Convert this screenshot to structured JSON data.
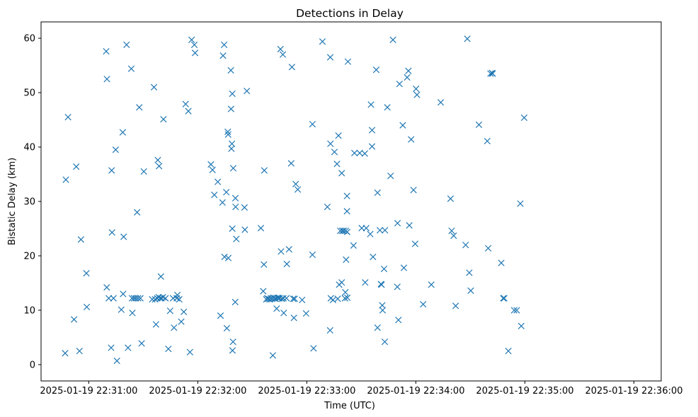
{
  "chart_data": {
    "type": "scatter",
    "title": "Detections in Delay",
    "xlabel": "Time (UTC)",
    "ylabel": "Bistatic Delay (km)",
    "x_axis_kind": "datetime",
    "x_start": "2025-01-19 22:30:47",
    "xlim": [
      -13.25,
      328
    ],
    "ylim": [
      -3.0,
      63.0
    ],
    "grid": false,
    "legend": null,
    "marker": "x",
    "color": "#1f77b4",
    "x_ticks": [
      {
        "t": 13,
        "label": "2025-01-19 22:31:00"
      },
      {
        "t": 73,
        "label": "2025-01-19 22:32:00"
      },
      {
        "t": 133,
        "label": "2025-01-19 22:33:00"
      },
      {
        "t": 193,
        "label": "2025-01-19 22:34:00"
      },
      {
        "t": 253,
        "label": "2025-01-19 22:35:00"
      },
      {
        "t": 313,
        "label": "2025-01-19 22:36:00"
      }
    ],
    "y_ticks": [
      {
        "v": 0,
        "label": "0"
      },
      {
        "v": 10,
        "label": "10"
      },
      {
        "v": 20,
        "label": "20"
      },
      {
        "v": 30,
        "label": "30"
      },
      {
        "v": 40,
        "label": "40"
      },
      {
        "v": 50,
        "label": "50"
      },
      {
        "v": 60,
        "label": "60"
      }
    ],
    "points": [
      [
        0,
        2.1
      ],
      [
        0.4,
        34.0
      ],
      [
        1.6,
        45.5
      ],
      [
        4.9,
        8.3
      ],
      [
        6.1,
        36.4
      ],
      [
        7.9,
        2.5
      ],
      [
        8.7,
        23.0
      ],
      [
        11.7,
        16.8
      ],
      [
        11.9,
        10.6
      ],
      [
        22.6,
        57.6
      ],
      [
        22.9,
        14.2
      ],
      [
        23.0,
        52.5
      ],
      [
        24.0,
        12.2
      ],
      [
        25.3,
        3.1
      ],
      [
        25.6,
        35.7
      ],
      [
        25.8,
        24.3
      ],
      [
        26.6,
        12.2
      ],
      [
        27.8,
        39.5
      ],
      [
        28.5,
        0.7
      ],
      [
        30.9,
        10.1
      ],
      [
        31.7,
        42.7
      ],
      [
        31.9,
        13.0
      ],
      [
        32.2,
        23.5
      ],
      [
        33.8,
        58.8
      ],
      [
        34.6,
        3.1
      ],
      [
        36.4,
        54.4
      ],
      [
        36.8,
        12.2
      ],
      [
        37.0,
        9.5
      ],
      [
        37.9,
        12.2
      ],
      [
        38.9,
        12.2
      ],
      [
        39.6,
        28.0
      ],
      [
        40.1,
        12.2
      ],
      [
        40.8,
        47.3
      ],
      [
        41.4,
        12.2
      ],
      [
        42.1,
        3.9
      ],
      [
        43.3,
        35.5
      ],
      [
        47.9,
        12.0
      ],
      [
        48.9,
        51.0
      ],
      [
        49.5,
        12.0
      ],
      [
        50.0,
        7.4
      ],
      [
        50.7,
        12.2
      ],
      [
        51.0,
        37.6
      ],
      [
        51.5,
        12.4
      ],
      [
        51.7,
        36.5
      ],
      [
        52.3,
        12.2
      ],
      [
        52.7,
        16.2
      ],
      [
        53.0,
        12.2
      ],
      [
        53.8,
        12.4
      ],
      [
        54.1,
        45.1
      ],
      [
        55.2,
        12.2
      ],
      [
        56.8,
        2.9
      ],
      [
        57.8,
        9.9
      ],
      [
        59.4,
        12.2
      ],
      [
        59.9,
        6.8
      ],
      [
        61.4,
        12.2
      ],
      [
        61.8,
        12.8
      ],
      [
        62.8,
        12.0
      ],
      [
        63.9,
        7.9
      ],
      [
        65.3,
        9.7
      ],
      [
        66.3,
        47.9
      ],
      [
        67.8,
        46.6
      ],
      [
        68.7,
        2.3
      ],
      [
        69.6,
        59.7
      ],
      [
        71.1,
        58.8
      ],
      [
        71.5,
        57.3
      ],
      [
        80.2,
        36.8
      ],
      [
        81.1,
        35.8
      ],
      [
        82.1,
        31.2
      ],
      [
        84.0,
        33.6
      ],
      [
        85.5,
        9.0
      ],
      [
        86.6,
        29.8
      ],
      [
        86.9,
        56.8
      ],
      [
        87.5,
        58.8
      ],
      [
        87.7,
        19.8
      ],
      [
        88.7,
        31.7
      ],
      [
        89.0,
        6.7
      ],
      [
        89.5,
        42.8
      ],
      [
        89.8,
        19.6
      ],
      [
        89.7,
        42.3
      ],
      [
        91.2,
        54.1
      ],
      [
        91.3,
        47.0
      ],
      [
        91.5,
        39.7
      ],
      [
        91.8,
        40.6
      ],
      [
        92.0,
        49.8
      ],
      [
        92.0,
        25.0
      ],
      [
        92.1,
        2.6
      ],
      [
        92.4,
        4.2
      ],
      [
        92.5,
        36.1
      ],
      [
        93.6,
        11.5
      ],
      [
        93.7,
        30.6
      ],
      [
        93.8,
        29.0
      ],
      [
        94.2,
        23.1
      ],
      [
        98.7,
        28.9
      ],
      [
        98.9,
        24.8
      ],
      [
        100.0,
        50.3
      ],
      [
        107.7,
        25.1
      ],
      [
        109.0,
        13.5
      ],
      [
        109.4,
        18.4
      ],
      [
        109.6,
        35.7
      ],
      [
        110.7,
        12.0
      ],
      [
        111.2,
        12.2
      ],
      [
        111.8,
        12.1
      ],
      [
        112.5,
        12.0
      ],
      [
        113.2,
        12.2
      ],
      [
        113.8,
        12.1
      ],
      [
        114.3,
        1.7
      ],
      [
        114.7,
        12.3
      ],
      [
        115.4,
        12.2
      ],
      [
        115.8,
        12.1
      ],
      [
        116.4,
        10.3
      ],
      [
        116.9,
        12.3
      ],
      [
        117.4,
        12.2
      ],
      [
        118.0,
        12.2
      ],
      [
        118.5,
        58.0
      ],
      [
        118.8,
        20.8
      ],
      [
        119.3,
        12.1
      ],
      [
        119.8,
        57.0
      ],
      [
        120.1,
        12.2
      ],
      [
        120.3,
        9.5
      ],
      [
        121.8,
        12.2
      ],
      [
        122.0,
        18.5
      ],
      [
        123.2,
        21.2
      ],
      [
        124.4,
        37.0
      ],
      [
        124.8,
        54.7
      ],
      [
        125.5,
        12.1
      ],
      [
        125.9,
        8.6
      ],
      [
        126.3,
        12.1
      ],
      [
        126.9,
        33.2
      ],
      [
        128.0,
        32.2
      ],
      [
        130.4,
        11.9
      ],
      [
        132.6,
        9.4
      ],
      [
        136.1,
        20.2
      ],
      [
        136.1,
        44.2
      ],
      [
        136.7,
        3.0
      ],
      [
        141.6,
        59.4
      ],
      [
        144.3,
        29.0
      ],
      [
        145.8,
        6.3
      ],
      [
        145.9,
        56.5
      ],
      [
        146.0,
        40.6
      ],
      [
        146.2,
        12.2
      ],
      [
        147.4,
        11.9
      ],
      [
        148.2,
        39.1
      ],
      [
        149.6,
        36.9
      ],
      [
        150.0,
        12.1
      ],
      [
        150.4,
        42.1
      ],
      [
        150.8,
        14.7
      ],
      [
        151.4,
        24.6
      ],
      [
        152.2,
        35.2
      ],
      [
        152.2,
        15.1
      ],
      [
        152.5,
        24.6
      ],
      [
        153.3,
        24.6
      ],
      [
        154.0,
        12.2
      ],
      [
        154.2,
        13.3
      ],
      [
        154.4,
        24.6
      ],
      [
        154.6,
        19.3
      ],
      [
        155.1,
        31.0
      ],
      [
        155.1,
        28.2
      ],
      [
        155.2,
        24.4
      ],
      [
        155.3,
        12.3
      ],
      [
        155.6,
        55.7
      ],
      [
        158.7,
        21.9
      ],
      [
        159.2,
        38.9
      ],
      [
        162.1,
        38.9
      ],
      [
        163.2,
        25.1
      ],
      [
        164.9,
        38.8
      ],
      [
        165.1,
        15.1
      ],
      [
        165.7,
        25.1
      ],
      [
        167.9,
        24.0
      ],
      [
        168.3,
        47.8
      ],
      [
        168.9,
        43.1
      ],
      [
        168.9,
        40.1
      ],
      [
        169.4,
        19.8
      ],
      [
        171.2,
        54.2
      ],
      [
        171.9,
        6.8
      ],
      [
        171.9,
        31.6
      ],
      [
        173.2,
        24.7
      ],
      [
        173.8,
        14.8
      ],
      [
        174.1,
        14.7
      ],
      [
        174.5,
        10.9
      ],
      [
        174.7,
        10.0
      ],
      [
        175.5,
        17.6
      ],
      [
        175.9,
        4.2
      ],
      [
        176.0,
        24.7
      ],
      [
        177.3,
        47.3
      ],
      [
        179.1,
        34.7
      ],
      [
        180.4,
        59.7
      ],
      [
        182.8,
        14.3
      ],
      [
        182.9,
        26.0
      ],
      [
        183.4,
        8.2
      ],
      [
        184.0,
        51.6
      ],
      [
        185.8,
        44.0
      ],
      [
        186.4,
        17.8
      ],
      [
        188.2,
        52.8
      ],
      [
        188.9,
        54.0
      ],
      [
        189.4,
        25.6
      ],
      [
        190.4,
        41.4
      ],
      [
        191.7,
        32.1
      ],
      [
        192.6,
        22.2
      ],
      [
        193.1,
        50.7
      ],
      [
        193.6,
        49.6
      ],
      [
        197.0,
        11.1
      ],
      [
        201.5,
        14.7
      ],
      [
        206.7,
        48.2
      ],
      [
        212.1,
        30.5
      ],
      [
        212.7,
        24.6
      ],
      [
        213.8,
        23.7
      ],
      [
        214.9,
        10.8
      ],
      [
        220.4,
        22.0
      ],
      [
        221.3,
        59.9
      ],
      [
        222.4,
        16.9
      ],
      [
        223.2,
        13.6
      ],
      [
        227.7,
        44.1
      ],
      [
        232.3,
        41.1
      ],
      [
        232.8,
        21.4
      ],
      [
        234.1,
        53.5
      ],
      [
        235.0,
        53.6
      ],
      [
        235.2,
        53.5
      ],
      [
        240.0,
        18.7
      ],
      [
        241.1,
        12.2
      ],
      [
        241.6,
        12.2
      ],
      [
        243.9,
        2.5
      ],
      [
        247.1,
        10.0
      ],
      [
        248.5,
        10.0
      ],
      [
        250.5,
        29.6
      ],
      [
        251.0,
        7.1
      ],
      [
        252.6,
        45.4
      ]
    ]
  }
}
